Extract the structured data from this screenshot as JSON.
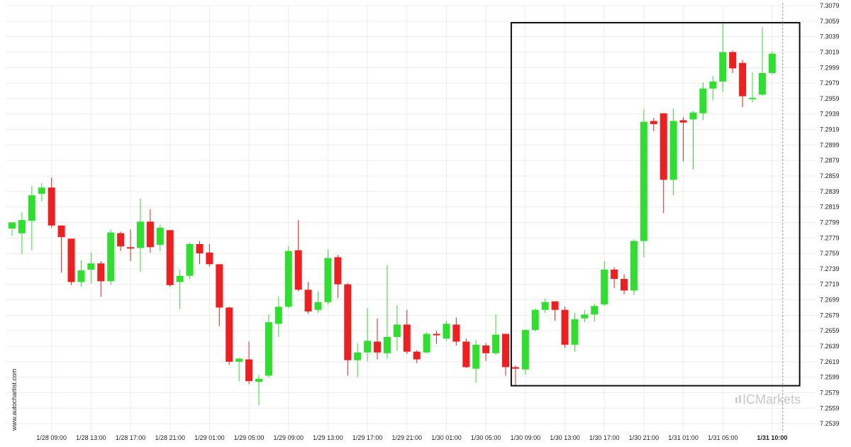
{
  "watermark": "www.autochartist.com",
  "brand": {
    "prefix": "IC",
    "name": "Markets"
  },
  "colors": {
    "up": "#2ee02e",
    "down": "#f01e1e",
    "grid": "#ececec",
    "frame": "#111111",
    "current": "#999999"
  },
  "chart_data": {
    "type": "candlestick",
    "title": "",
    "xlabel": "",
    "ylabel": "",
    "ylim": [
      7.2529,
      7.3079
    ],
    "y_ticks": [
      "7.3079",
      "7.3059",
      "7.3039",
      "7.3019",
      "7.2999",
      "7.2979",
      "7.2959",
      "7.2939",
      "7.2919",
      "7.2899",
      "7.2879",
      "7.2859",
      "7.2839",
      "7.2819",
      "7.2799",
      "7.2779",
      "7.2759",
      "7.2739",
      "7.2719",
      "7.2699",
      "7.2679",
      "7.2659",
      "7.2639",
      "7.2619",
      "7.2599",
      "7.2579",
      "7.2559",
      "7.2539"
    ],
    "x_ticks": [
      {
        "label": "1/28 09:00",
        "index": 4
      },
      {
        "label": "1/28 13:00",
        "index": 8
      },
      {
        "label": "1/28 17:00",
        "index": 12
      },
      {
        "label": "1/28 21:00",
        "index": 16
      },
      {
        "label": "1/29 01:00",
        "index": 20
      },
      {
        "label": "1/29 05:00",
        "index": 24
      },
      {
        "label": "1/29 09:00",
        "index": 28
      },
      {
        "label": "1/29 13:00",
        "index": 32
      },
      {
        "label": "1/29 17:00",
        "index": 36
      },
      {
        "label": "1/29 21:00",
        "index": 40
      },
      {
        "label": "1/30 01:00",
        "index": 44
      },
      {
        "label": "1/30 05:00",
        "index": 48
      },
      {
        "label": "1/30 09:00",
        "index": 52
      },
      {
        "label": "1/30 13:00",
        "index": 56
      },
      {
        "label": "1/30 17:00",
        "index": 60
      },
      {
        "label": "1/30 21:00",
        "index": 64
      },
      {
        "label": "1/31 01:00",
        "index": 68
      },
      {
        "label": "1/31 05:00",
        "index": 72
      },
      {
        "label": "1/31 10:00",
        "index": 77,
        "bold": true
      }
    ],
    "candles": [
      [
        7.2791,
        7.2799,
        7.279,
        7.2782
      ],
      [
        7.2785,
        7.2802,
        7.2812,
        7.2758
      ],
      [
        7.2801,
        7.2834,
        7.2846,
        7.2763
      ],
      [
        7.2836,
        7.2844,
        7.285,
        7.2826
      ],
      [
        7.2844,
        7.2795,
        7.2857,
        7.2792
      ],
      [
        7.2795,
        7.278,
        7.279,
        7.2734
      ],
      [
        7.2778,
        7.2722,
        7.2778,
        7.2718
      ],
      [
        7.2722,
        7.2737,
        7.275,
        7.2716
      ],
      [
        7.2738,
        7.2746,
        7.276,
        7.272
      ],
      [
        7.2746,
        7.2723,
        7.2749,
        7.2703
      ],
      [
        7.2723,
        7.2786,
        7.279,
        7.2718
      ],
      [
        7.2785,
        7.2768,
        7.2787,
        7.2762
      ],
      [
        7.2767,
        7.2766,
        7.279,
        7.2749
      ],
      [
        7.2766,
        7.28,
        7.283,
        7.2735
      ],
      [
        7.28,
        7.2767,
        7.2816,
        7.276
      ],
      [
        7.277,
        7.2792,
        7.2796,
        7.2762
      ],
      [
        7.2789,
        7.2718,
        7.2789,
        7.2716
      ],
      [
        7.2722,
        7.273,
        7.2738,
        7.2687
      ],
      [
        7.273,
        7.2771,
        7.2773,
        7.2726
      ],
      [
        7.2771,
        7.2759,
        7.2775,
        7.2745
      ],
      [
        7.276,
        7.2745,
        7.2771,
        7.2742
      ],
      [
        7.2745,
        7.2689,
        7.2745,
        7.2665
      ],
      [
        7.2689,
        7.2619,
        7.269,
        7.2615
      ],
      [
        7.2619,
        7.2623,
        7.2624,
        7.2594
      ],
      [
        7.2622,
        7.2594,
        7.2645,
        7.259
      ],
      [
        7.2593,
        7.2597,
        7.2602,
        7.2563
      ],
      [
        7.2601,
        7.267,
        7.268,
        7.2598
      ],
      [
        7.2668,
        7.269,
        7.2703,
        7.2651
      ],
      [
        7.269,
        7.2762,
        7.2768,
        7.2688
      ],
      [
        7.2763,
        7.2712,
        7.2802,
        7.271
      ],
      [
        7.2712,
        7.2684,
        7.2722,
        7.2681
      ],
      [
        7.2686,
        7.2696,
        7.271,
        7.2682
      ],
      [
        7.2696,
        7.2753,
        7.2764,
        7.2693
      ],
      [
        7.2754,
        7.2719,
        7.2757,
        7.2701
      ],
      [
        7.2719,
        7.2621,
        7.2721,
        7.2601
      ],
      [
        7.2621,
        7.2631,
        7.2643,
        7.2599
      ],
      [
        7.2631,
        7.2646,
        7.2688,
        7.2619
      ],
      [
        7.2645,
        7.2631,
        7.2675,
        7.2622
      ],
      [
        7.263,
        7.2651,
        7.2744,
        7.2623
      ],
      [
        7.2651,
        7.2667,
        7.2692,
        7.2633
      ],
      [
        7.2667,
        7.2632,
        7.2686,
        7.2629
      ],
      [
        7.2632,
        7.2622,
        7.2634,
        7.2617
      ],
      [
        7.2631,
        7.2655,
        7.2657,
        7.263
      ],
      [
        7.2655,
        7.2654,
        7.2659,
        7.2642
      ],
      [
        7.2649,
        7.2668,
        7.2672,
        7.2646
      ],
      [
        7.2667,
        7.2645,
        7.2676,
        7.264
      ],
      [
        7.2645,
        7.2612,
        7.2649,
        7.2611
      ],
      [
        7.261,
        7.2641,
        7.2647,
        7.2592
      ],
      [
        7.264,
        7.263,
        7.2643,
        7.262
      ],
      [
        7.263,
        7.2654,
        7.268,
        7.2628
      ],
      [
        7.2655,
        7.2612,
        7.2655,
        7.2601
      ],
      [
        7.2612,
        7.261,
        7.2614,
        7.2588
      ],
      [
        7.2609,
        7.266,
        7.2661,
        7.2602
      ],
      [
        7.266,
        7.2686,
        7.2688,
        7.2658
      ],
      [
        7.2686,
        7.2696,
        7.2701,
        7.2682
      ],
      [
        7.2697,
        7.2686,
        7.2697,
        7.2672
      ],
      [
        7.2686,
        7.2641,
        7.269,
        7.2637
      ],
      [
        7.2641,
        7.2674,
        7.2682,
        7.2632
      ],
      [
        7.2675,
        7.268,
        7.2686,
        7.267
      ],
      [
        7.268,
        7.2691,
        7.2694,
        7.2671
      ],
      [
        7.2693,
        7.2738,
        7.2749,
        7.2691
      ],
      [
        7.2738,
        7.2726,
        7.2741,
        7.2714
      ],
      [
        7.2726,
        7.2711,
        7.2732,
        7.2706
      ],
      [
        7.2711,
        7.2775,
        7.2777,
        7.2705
      ],
      [
        7.2775,
        7.2929,
        7.2945,
        7.2754
      ],
      [
        7.293,
        7.2926,
        7.2934,
        7.2917
      ],
      [
        7.294,
        7.2854,
        7.294,
        7.2811
      ],
      [
        7.2854,
        7.293,
        7.2946,
        7.2834
      ],
      [
        7.2931,
        7.2928,
        7.2935,
        7.2878
      ],
      [
        7.2932,
        7.2941,
        7.2943,
        7.2867
      ],
      [
        7.294,
        7.2972,
        7.298,
        7.2931
      ],
      [
        7.2972,
        7.2981,
        7.2988,
        7.2957
      ],
      [
        7.2981,
        7.3019,
        7.3056,
        7.2968
      ],
      [
        7.3019,
        7.2998,
        7.3021,
        7.2992
      ],
      [
        7.3005,
        7.2962,
        7.3009,
        7.2948
      ],
      [
        7.296,
        7.296,
        7.2993,
        7.2954
      ],
      [
        7.2964,
        7.2992,
        7.3051,
        7.2963
      ],
      [
        7.2992,
        7.3017,
        7.302,
        7.299
      ]
    ],
    "pattern_box": {
      "start_index": 51,
      "end_index": 80,
      "high": 7.3057,
      "low": 7.2588
    },
    "current_index": 78
  }
}
